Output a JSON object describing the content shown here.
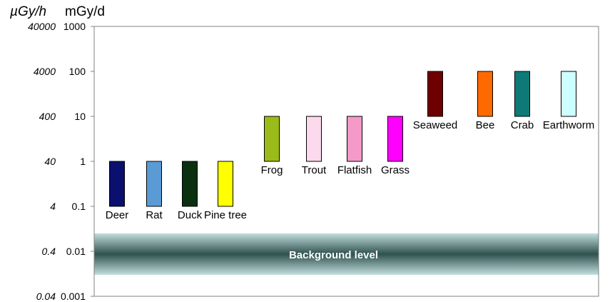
{
  "chart_data": {
    "type": "bar",
    "scale": "log",
    "ylim": [
      0.001,
      1000
    ],
    "grid": false,
    "left_axis_unit": "µGy/h",
    "right_axis_unit": "mGy/d",
    "ticks": [
      {
        "mgyd": 1000,
        "mgyd_label": "1000",
        "ugyh_label": "40000"
      },
      {
        "mgyd": 100,
        "mgyd_label": "100",
        "ugyh_label": "4000"
      },
      {
        "mgyd": 10,
        "mgyd_label": "10",
        "ugyh_label": "400"
      },
      {
        "mgyd": 1,
        "mgyd_label": "1",
        "ugyh_label": "40"
      },
      {
        "mgyd": 0.1,
        "mgyd_label": "0.1",
        "ugyh_label": "4"
      },
      {
        "mgyd": 0.01,
        "mgyd_label": "0.01",
        "ugyh_label": "0.4"
      },
      {
        "mgyd": 0.001,
        "mgyd_label": "0.001",
        "ugyh_label": "0.04"
      }
    ],
    "background_band": {
      "label": "Background level",
      "low": 0.003,
      "high": 0.025
    },
    "bars": [
      {
        "label": "Deer",
        "low": 0.1,
        "high": 1,
        "color": "#0b0f6e"
      },
      {
        "label": "Rat",
        "low": 0.1,
        "high": 1,
        "color": "#5b9bd5"
      },
      {
        "label": "Duck",
        "low": 0.1,
        "high": 1,
        "color": "#0b3010"
      },
      {
        "label": "Pine tree",
        "low": 0.1,
        "high": 1,
        "color": "#ffff00"
      },
      {
        "label": "Frog",
        "low": 1,
        "high": 10,
        "color": "#9bbb1a"
      },
      {
        "label": "Trout",
        "low": 1,
        "high": 10,
        "color": "#fcd9ec"
      },
      {
        "label": "Flatfish",
        "low": 1,
        "high": 10,
        "color": "#f59ac8"
      },
      {
        "label": "Grass",
        "low": 1,
        "high": 10,
        "color": "#ff00ff"
      },
      {
        "label": "Seaweed",
        "low": 10,
        "high": 100,
        "color": "#6e0000"
      },
      {
        "label": "Bee",
        "low": 10,
        "high": 100,
        "color": "#ff6a00"
      },
      {
        "label": "Crab",
        "low": 10,
        "high": 100,
        "color": "#0d7a78"
      },
      {
        "label": "Earthworm",
        "low": 10,
        "high": 100,
        "color": "#ccffff"
      }
    ]
  }
}
